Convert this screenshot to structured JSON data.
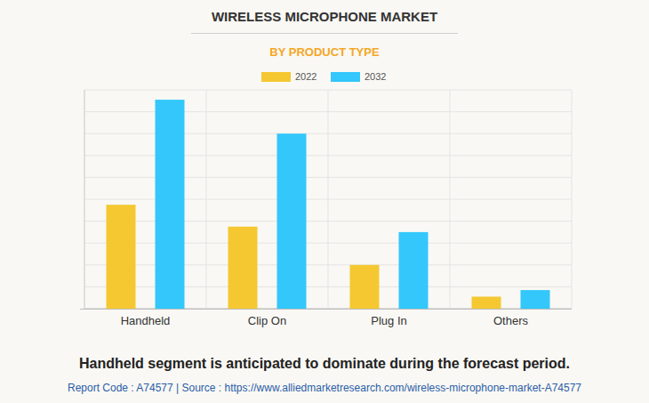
{
  "chart_data": {
    "type": "bar",
    "title": "WIRELESS MICROPHONE MARKET",
    "subtitle": "BY PRODUCT TYPE",
    "caption": "Handheld segment is anticipated to dominate during the forecast period.",
    "footer": "Report Code : A74577  |  Source : https://www.alliedmarketresearch.com/wireless-microphone-market-A74577",
    "categories": [
      "Handheld",
      "Clip On",
      "Plug In",
      "Others"
    ],
    "series": [
      {
        "name": "2022",
        "color": "#f5c832",
        "values": [
          4.75,
          3.75,
          2.0,
          0.55
        ]
      },
      {
        "name": "2032",
        "color": "#33c7fb",
        "values": [
          9.55,
          8.0,
          3.5,
          0.85
        ]
      }
    ],
    "ylim": [
      0,
      10
    ],
    "yticks": [
      0,
      1,
      2,
      3,
      4,
      5,
      6,
      7,
      8,
      9,
      10
    ],
    "grid": true,
    "legend": "top",
    "tick_labels": "x"
  }
}
